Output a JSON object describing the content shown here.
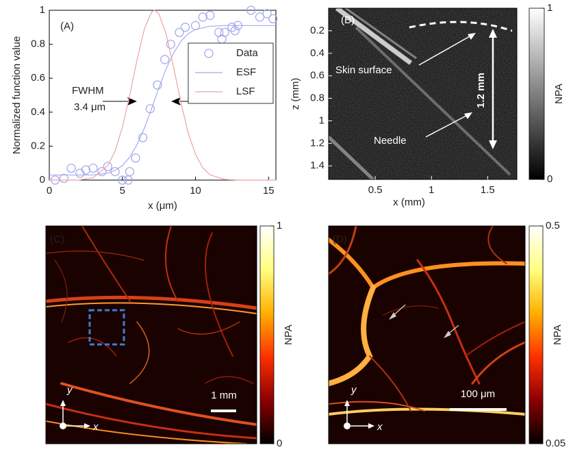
{
  "chart_data": [
    {
      "type": "line",
      "panel_label": "(A)",
      "xlabel": "x (μm)",
      "ylabel": "Normalized function value",
      "xlim": [
        0,
        15.5
      ],
      "ylim": [
        0,
        1
      ],
      "xticks": [
        0,
        5,
        10,
        15
      ],
      "yticks": [
        0,
        0.2,
        0.4,
        0.6,
        0.8,
        1
      ],
      "legend": "upper right",
      "annotations": [
        "FWHM",
        "3.4 μm"
      ],
      "series": [
        {
          "name": "Data",
          "kind": "scatter",
          "color": "#a4aaf0",
          "x": [
            0.4,
            1.0,
            1.5,
            2.1,
            2.5,
            3.0,
            3.6,
            4.0,
            4.5,
            5.0,
            5.4,
            5.5,
            5.9,
            6.4,
            6.9,
            7.4,
            7.9,
            8.3,
            8.9,
            9.3,
            10.0,
            10.5,
            11.0,
            11.6,
            11.8,
            12.0,
            12.5,
            12.7,
            12.9,
            13.8,
            14.4,
            14.9,
            15.3
          ],
          "values": [
            0.0,
            0.01,
            0.07,
            0.04,
            0.06,
            0.07,
            0.05,
            0.08,
            0.05,
            0.0,
            0.0,
            0.05,
            0.13,
            0.25,
            0.42,
            0.56,
            0.71,
            0.8,
            0.87,
            0.9,
            0.91,
            0.96,
            0.97,
            0.87,
            0.83,
            0.87,
            0.9,
            0.88,
            0.91,
            1.0,
            0.96,
            0.98,
            0.95
          ]
        },
        {
          "name": "ESF",
          "kind": "line",
          "color": "#a4aaf0",
          "x": [
            0,
            1,
            2,
            3,
            4,
            4.5,
            5,
            5.5,
            6,
            6.5,
            7,
            7.5,
            8,
            8.5,
            9,
            9.5,
            10,
            11,
            12,
            13,
            14,
            15,
            15.5
          ],
          "values": [
            0.03,
            0.03,
            0.03,
            0.03,
            0.041,
            0.057,
            0.085,
            0.135,
            0.209,
            0.305,
            0.421,
            0.543,
            0.657,
            0.748,
            0.817,
            0.862,
            0.887,
            0.906,
            0.91,
            0.91,
            0.91,
            0.91,
            0.91
          ]
        },
        {
          "name": "LSF",
          "kind": "line",
          "color": "#f0a0a0",
          "x": [
            0,
            1,
            2,
            3,
            4,
            4.5,
            5,
            5.5,
            6,
            6.5,
            7,
            7.2,
            7.5,
            8,
            8.5,
            9,
            9.5,
            10,
            10.5,
            11,
            12,
            13,
            14,
            15,
            15.5
          ],
          "values": [
            0,
            0,
            0,
            0.014,
            0.085,
            0.172,
            0.311,
            0.498,
            0.707,
            0.889,
            0.99,
            1,
            0.979,
            0.857,
            0.665,
            0.458,
            0.279,
            0.151,
            0.072,
            0.031,
            0.004,
            0,
            0,
            0,
            0
          ]
        }
      ]
    },
    {
      "type": "image",
      "panel_label": "(B)",
      "xlabel": "x (mm)",
      "ylabel": "z (mm)",
      "xlim": [
        0.085,
        1.76
      ],
      "ylim": [
        1.52,
        0
      ],
      "xticks": [
        0.5,
        1,
        1.5
      ],
      "yticks": [
        0.2,
        0.4,
        0.6,
        0.8,
        1,
        1.2,
        1.4
      ],
      "annotations": [
        "Skin surface",
        "Needle",
        "1.2 mm"
      ],
      "colorbar": {
        "label": "NPA",
        "lim": [
          0,
          1
        ],
        "ticks": [
          0,
          1
        ],
        "colormap": [
          "#000000",
          "#ffffff"
        ]
      }
    },
    {
      "type": "image",
      "panel_label": "(C)",
      "scale_bar": "1 mm",
      "axis_labels": [
        "y",
        "x"
      ],
      "colorbar": {
        "label": "NPA",
        "lim": [
          0,
          1
        ],
        "ticks": [
          0,
          1
        ],
        "colormap": [
          "#000000",
          "#8b0000",
          "#ff3000",
          "#ffb000",
          "#ffff80",
          "#ffffff"
        ]
      }
    },
    {
      "type": "image",
      "panel_label": "(D)",
      "scale_bar": "100 μm",
      "axis_labels": [
        "y",
        "x"
      ],
      "colorbar": {
        "label": "NPA",
        "lim": [
          0.05,
          0.5
        ],
        "ticks": [
          0.05,
          0.5
        ],
        "colormap": [
          "#000000",
          "#8b0000",
          "#ff3000",
          "#ffb000",
          "#ffff80",
          "#ffffff"
        ]
      }
    }
  ]
}
